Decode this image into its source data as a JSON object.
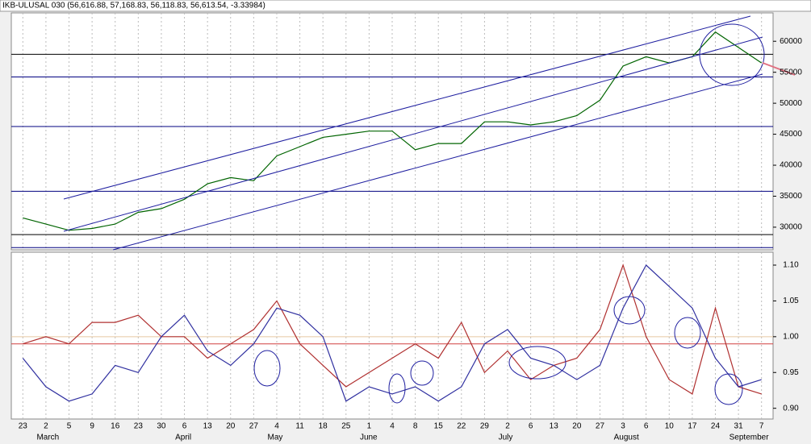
{
  "chart_data": [
    {
      "type": "line",
      "title": "IKB-ULUSAL 030 (56,616.88, 57,168.83, 56,118.83, 56,613.54, -3.33984)",
      "color": "#006400",
      "values": [
        31500,
        30500,
        29500,
        29800,
        30500,
        32400,
        33000,
        34500,
        37000,
        38000,
        37500,
        41500,
        43000,
        44500,
        45000,
        45500,
        45500,
        42500,
        43500,
        43500,
        47000,
        47000,
        46500,
        47000,
        48000,
        50500,
        56000,
        57500,
        56500,
        57500,
        61500,
        59000,
        56500
      ],
      "ylim": [
        26350,
        64580
      ],
      "yticks": [
        30000,
        35000,
        40000,
        45000,
        50000,
        55000,
        60000
      ],
      "hlines": [
        {
          "value": 57900,
          "color": "#000000"
        },
        {
          "value": 54250,
          "color": "#000080"
        },
        {
          "value": 46250,
          "color": "#000080"
        },
        {
          "value": 35800,
          "color": "#000080"
        },
        {
          "value": 28800,
          "color": "#000000"
        },
        {
          "value": 26700,
          "color": "#000080"
        }
      ],
      "grid": true
    },
    {
      "type": "line",
      "categories": [
        "23",
        "2",
        "5",
        "9",
        "16",
        "23",
        "30",
        "6",
        "13",
        "20",
        "27",
        "4",
        "11",
        "18",
        "25",
        "1",
        "4",
        "8",
        "15",
        "22",
        "29",
        "2",
        "6",
        "13",
        "20",
        "27",
        "3",
        "6",
        "10",
        "17",
        "24",
        "31",
        "7"
      ],
      "month_labels": [
        null,
        "March",
        null,
        null,
        null,
        null,
        null,
        "April",
        null,
        null,
        null,
        "May",
        null,
        null,
        null,
        "June",
        null,
        null,
        null,
        null,
        null,
        "July",
        null,
        null,
        null,
        null,
        "August",
        null,
        null,
        null,
        null,
        "September",
        null
      ],
      "series": [
        {
          "color": "#b03030",
          "values": [
            0.99,
            1.0,
            0.99,
            1.02,
            1.02,
            1.03,
            1.0,
            1.0,
            0.97,
            0.99,
            1.01,
            1.05,
            0.99,
            0.96,
            0.93,
            0.95,
            0.97,
            0.99,
            0.97,
            1.02,
            0.95,
            0.98,
            0.94,
            0.96,
            0.97,
            1.01,
            1.1,
            1.0,
            0.94,
            0.92,
            1.04,
            0.93,
            0.92
          ]
        },
        {
          "color": "#3030a0",
          "values": [
            0.97,
            0.93,
            0.91,
            0.92,
            0.96,
            0.95,
            1.0,
            1.03,
            0.98,
            0.96,
            0.99,
            1.04,
            1.03,
            1.0,
            0.91,
            0.93,
            0.92,
            0.93,
            0.91,
            0.93,
            0.99,
            1.01,
            0.97,
            0.96,
            0.94,
            0.96,
            1.04,
            1.1,
            1.07,
            1.04,
            0.97,
            0.93,
            0.94
          ]
        }
      ],
      "ylim": [
        0.885,
        1.118
      ],
      "yticks": [
        {
          "value": 0.9,
          "label": "0.90"
        },
        {
          "value": 0.95,
          "label": "0.95"
        },
        {
          "value": 1.0,
          "label": "1.00"
        },
        {
          "value": 1.05,
          "label": "1.05"
        },
        {
          "value": 1.1,
          "label": "1.10"
        }
      ],
      "hlines": [
        {
          "value": 1.0,
          "color": "#e8c8a0"
        },
        {
          "value": 0.99,
          "color": "#d04040"
        }
      ],
      "grid": true
    }
  ]
}
